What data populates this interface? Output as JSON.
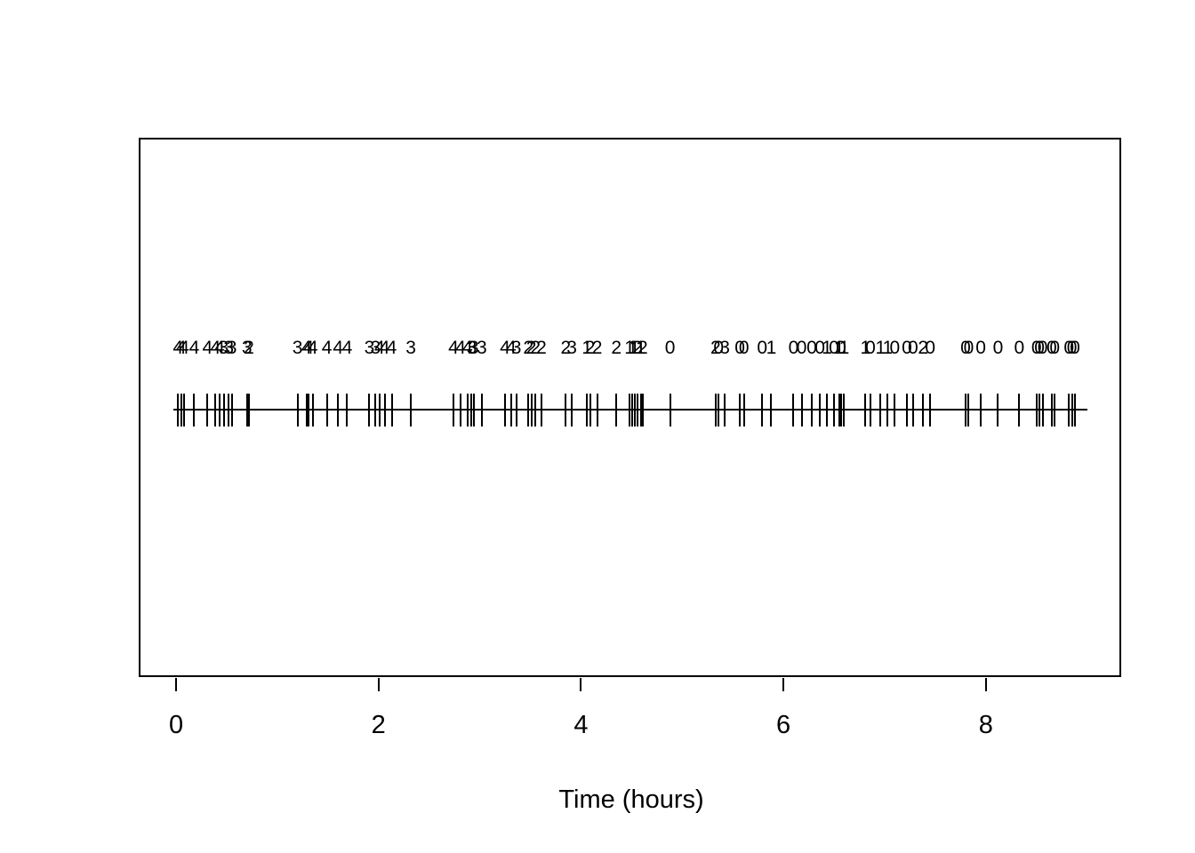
{
  "chart_data": {
    "type": "scatter",
    "subtype": "event-rug-plot",
    "title": "",
    "xlabel": "Time (hours)",
    "ylabel": "",
    "xlim": [
      0,
      9
    ],
    "x_axis_ticks": [
      0,
      2,
      4,
      6,
      8
    ],
    "grid": false,
    "legend": "none",
    "description": "Horizontal timeline with vertical tick marks at event times; an integer count label (0-4) is printed above each event tick.",
    "events": [
      {
        "t": 0.02,
        "n": 4
      },
      {
        "t": 0.05,
        "n": 4
      },
      {
        "t": 0.08,
        "n": 4
      },
      {
        "t": 0.18,
        "n": 4
      },
      {
        "t": 0.31,
        "n": 4
      },
      {
        "t": 0.39,
        "n": 4
      },
      {
        "t": 0.43,
        "n": 4
      },
      {
        "t": 0.47,
        "n": 3
      },
      {
        "t": 0.52,
        "n": 3
      },
      {
        "t": 0.55,
        "n": 3
      },
      {
        "t": 0.7,
        "n": 3
      },
      {
        "t": 0.72,
        "n": 2
      },
      {
        "t": 1.2,
        "n": 3
      },
      {
        "t": 1.29,
        "n": 4
      },
      {
        "t": 1.31,
        "n": 4
      },
      {
        "t": 1.35,
        "n": 4
      },
      {
        "t": 1.49,
        "n": 4
      },
      {
        "t": 1.6,
        "n": 4
      },
      {
        "t": 1.69,
        "n": 4
      },
      {
        "t": 1.91,
        "n": 3
      },
      {
        "t": 1.97,
        "n": 3
      },
      {
        "t": 2.01,
        "n": 4
      },
      {
        "t": 2.06,
        "n": 4
      },
      {
        "t": 2.13,
        "n": 4
      },
      {
        "t": 2.32,
        "n": 3
      },
      {
        "t": 2.74,
        "n": 4
      },
      {
        "t": 2.81,
        "n": 4
      },
      {
        "t": 2.88,
        "n": 4
      },
      {
        "t": 2.92,
        "n": 3
      },
      {
        "t": 2.94,
        "n": 3
      },
      {
        "t": 3.02,
        "n": 3
      },
      {
        "t": 3.25,
        "n": 4
      },
      {
        "t": 3.31,
        "n": 4
      },
      {
        "t": 3.36,
        "n": 3
      },
      {
        "t": 3.48,
        "n": 2
      },
      {
        "t": 3.51,
        "n": 2
      },
      {
        "t": 3.55,
        "n": 2
      },
      {
        "t": 3.61,
        "n": 2
      },
      {
        "t": 3.85,
        "n": 2
      },
      {
        "t": 3.91,
        "n": 3
      },
      {
        "t": 4.06,
        "n": 1
      },
      {
        "t": 4.09,
        "n": 2
      },
      {
        "t": 4.16,
        "n": 2
      },
      {
        "t": 4.35,
        "n": 2
      },
      {
        "t": 4.48,
        "n": 1
      },
      {
        "t": 4.51,
        "n": 1
      },
      {
        "t": 4.53,
        "n": 1
      },
      {
        "t": 4.56,
        "n": 2
      },
      {
        "t": 4.59,
        "n": 1
      },
      {
        "t": 4.61,
        "n": 2
      },
      {
        "t": 4.88,
        "n": 0
      },
      {
        "t": 5.33,
        "n": 2
      },
      {
        "t": 5.36,
        "n": 0
      },
      {
        "t": 5.42,
        "n": 3
      },
      {
        "t": 5.57,
        "n": 0
      },
      {
        "t": 5.61,
        "n": 0
      },
      {
        "t": 5.79,
        "n": 0
      },
      {
        "t": 5.88,
        "n": 1
      },
      {
        "t": 6.1,
        "n": 0
      },
      {
        "t": 6.18,
        "n": 0
      },
      {
        "t": 6.28,
        "n": 0
      },
      {
        "t": 6.36,
        "n": 0
      },
      {
        "t": 6.43,
        "n": 1
      },
      {
        "t": 6.5,
        "n": 0
      },
      {
        "t": 6.55,
        "n": 1
      },
      {
        "t": 6.57,
        "n": 0
      },
      {
        "t": 6.6,
        "n": 1
      },
      {
        "t": 6.81,
        "n": 1
      },
      {
        "t": 6.86,
        "n": 0
      },
      {
        "t": 6.96,
        "n": 1
      },
      {
        "t": 7.03,
        "n": 1
      },
      {
        "t": 7.1,
        "n": 0
      },
      {
        "t": 7.22,
        "n": 0
      },
      {
        "t": 7.28,
        "n": 0
      },
      {
        "t": 7.38,
        "n": 2
      },
      {
        "t": 7.45,
        "n": 0
      },
      {
        "t": 7.8,
        "n": 0
      },
      {
        "t": 7.83,
        "n": 0
      },
      {
        "t": 7.95,
        "n": 0
      },
      {
        "t": 8.12,
        "n": 0
      },
      {
        "t": 8.33,
        "n": 0
      },
      {
        "t": 8.5,
        "n": 0
      },
      {
        "t": 8.53,
        "n": 0
      },
      {
        "t": 8.56,
        "n": 0
      },
      {
        "t": 8.65,
        "n": 0
      },
      {
        "t": 8.68,
        "n": 0
      },
      {
        "t": 8.82,
        "n": 0
      },
      {
        "t": 8.85,
        "n": 0
      },
      {
        "t": 8.88,
        "n": 0
      }
    ],
    "colors": {
      "foreground": "#000000",
      "background": "#ffffff"
    }
  }
}
